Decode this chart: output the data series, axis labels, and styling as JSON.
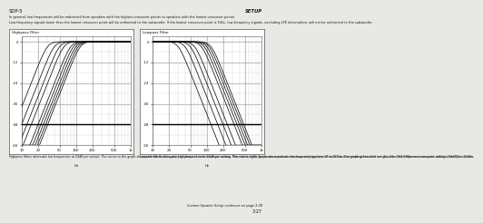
{
  "page_bg": "#e8e8e4",
  "header_left": "SDP-5",
  "header_right": "SETUP",
  "body_text_line1": "In general, low frequencies will be redirected from speakers with the highest crossover points to speakers with the lowest crossover points.",
  "body_text_line2": "Low-frequency signals lower than the lowest crossover point will be redirected to the subwoofer. If the lowest crossover point is FULL, low-frequency signals, excluding LFE information, will not be redirected to the subwoofer.",
  "chart1_title": "Highpass Filter",
  "chart2_title": "Lowpass Filter",
  "chart1_caption": "Highpass filters attenuate low frequencies at 24dB per octave. The curves in the graph above indicate the frequency response of each crossover setting. From left to right, the curves represent crossover settings from 30 to 120Hz. The graph above does not show the THX 80Hz crossover point, which is 12dB per octave.",
  "chart2_caption": "Lowpass filters attenuate high frequencies at 24dB per octave. The curves in the graph above indicate the frequency response of each crossover setting. From left to right, the curves represent crossover settings from 30 to 120Hz.",
  "footer_text": "Custom Speaker Setup continues on page 3-28",
  "page_number": "3-27",
  "hp_crossovers": [
    30,
    40,
    50,
    60,
    80,
    90,
    100,
    110,
    120
  ],
  "lp_crossovers": [
    30,
    40,
    50,
    60,
    80,
    90,
    100,
    110,
    120
  ],
  "freq_min": 10,
  "freq_max": 1000,
  "db_min": -60,
  "db_max": 0,
  "db_ticks": [
    0,
    -12,
    -24,
    -36,
    -48,
    -60
  ],
  "freq_ticks": [
    10,
    20,
    50,
    100,
    200,
    500,
    1000
  ],
  "freq_tick_labels": [
    "10",
    "20",
    "50",
    "100",
    "200",
    "500",
    "1k"
  ],
  "chart_bg": "#ffffff",
  "grid_color": "#999999",
  "grid_color_minor": "#cccccc",
  "curve_color": "#111111",
  "border_color": "#555555",
  "text_color": "#111111",
  "header_line_color": "#888888",
  "footer_line_color": "#888888"
}
